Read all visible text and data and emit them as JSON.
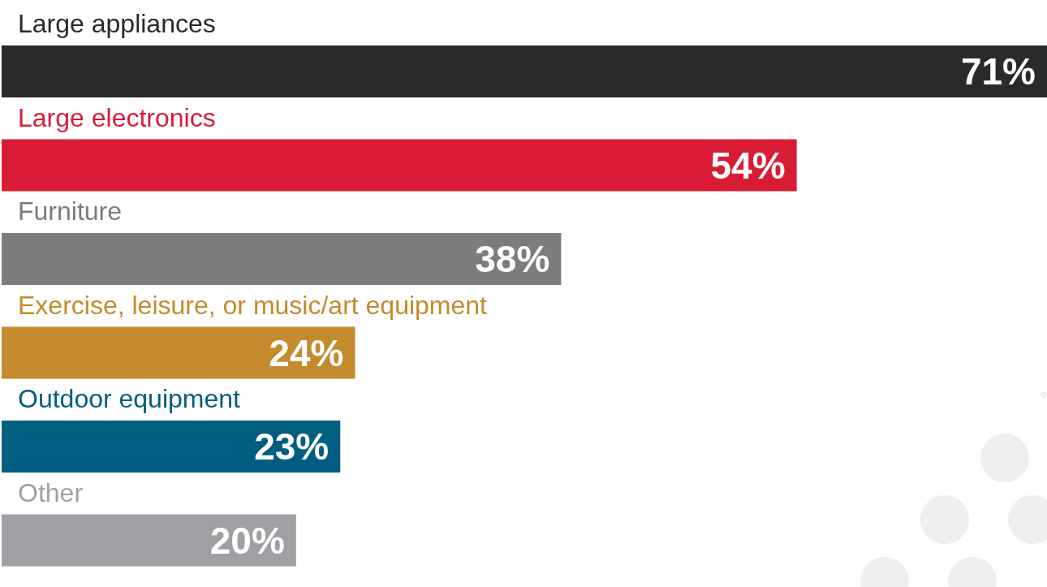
{
  "chart_data": {
    "type": "bar",
    "orientation": "horizontal",
    "categories": [
      "Large appliances",
      "Large electronics",
      "Furniture",
      "Exercise, leisure, or music/art equipment",
      "Outdoor equipment",
      "Other"
    ],
    "values": [
      71,
      54,
      38,
      24,
      23,
      20
    ],
    "value_labels": [
      "71%",
      "54%",
      "38%",
      "24%",
      "23%",
      "20%"
    ],
    "colors": [
      "#2b2929",
      "#d91c35",
      "#7c7c7c",
      "#c48a2b",
      "#005f80",
      "#a0a0a4"
    ]
  }
}
